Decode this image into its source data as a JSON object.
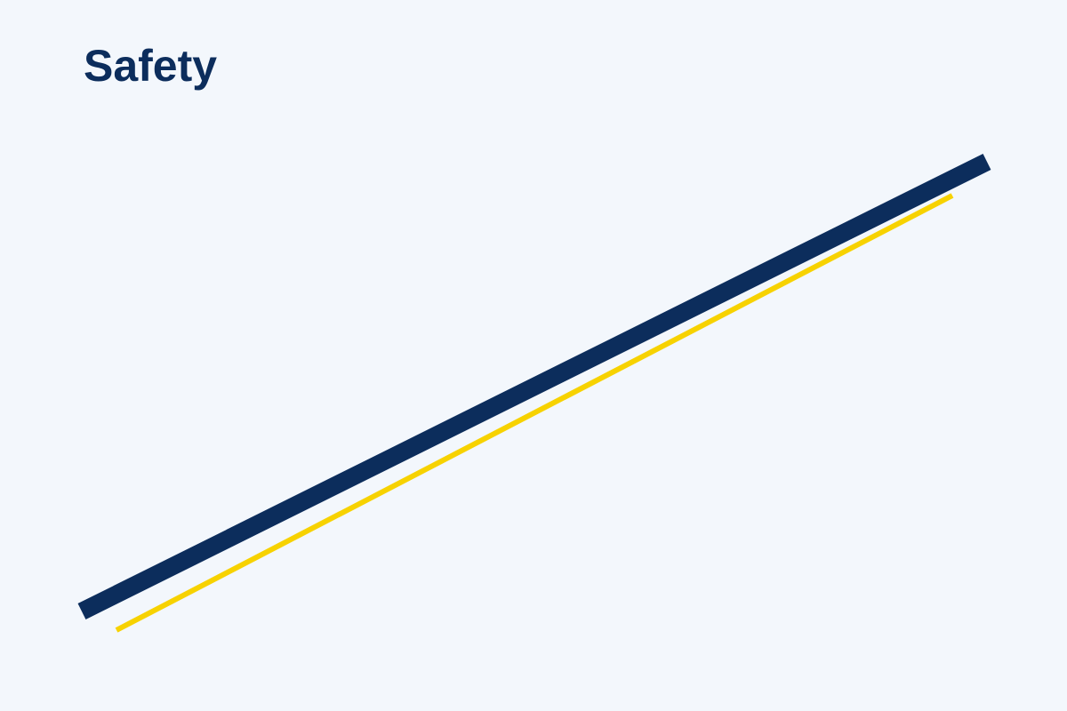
{
  "slide": {
    "title": "Safety"
  },
  "colors": {
    "background": "#f3f7fc",
    "title": "#0c2d5c",
    "primary_stripe": "#0c2d5c",
    "accent_stripe": "#f7d200"
  }
}
